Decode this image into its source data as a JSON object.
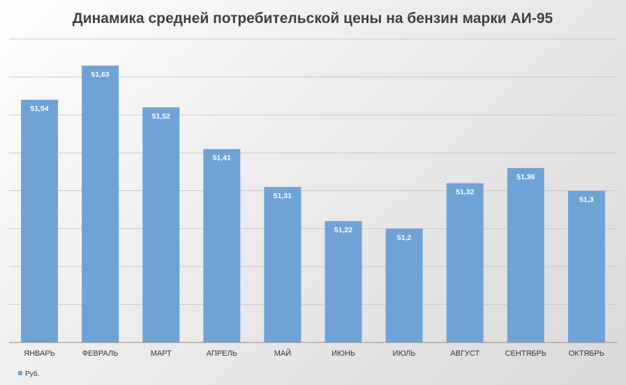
{
  "chart_data": {
    "type": "bar",
    "title": "Динамика средней потребительской цены на бензин марки АИ-95",
    "categories": [
      "ЯНВАРЬ",
      "ФЕВРАЛЬ",
      "МАРТ",
      "АПРЕЛЬ",
      "МАЙ",
      "ИЮНЬ",
      "ИЮЛЬ",
      "АВГУСТ",
      "СЕНТЯБРЬ",
      "ОКТЯБРЬ"
    ],
    "series": [
      {
        "name": "Руб.",
        "values": [
          51.54,
          51.63,
          51.52,
          51.41,
          51.31,
          51.22,
          51.2,
          51.32,
          51.36,
          51.3
        ],
        "labels": [
          "51,54",
          "51,63",
          "51,52",
          "51,41",
          "51,31",
          "51,22",
          "51,2",
          "51,32",
          "51,36",
          "51,3"
        ]
      }
    ],
    "ylim": [
      50.9,
      51.7
    ],
    "y_axis_labels_visible": false,
    "grid": true,
    "legend_position": "bottom-left",
    "colors": {
      "bar": "#6fa3d8",
      "grid": "#c8c8c8",
      "axis": "#8c8c8c",
      "title": "#404040"
    }
  }
}
